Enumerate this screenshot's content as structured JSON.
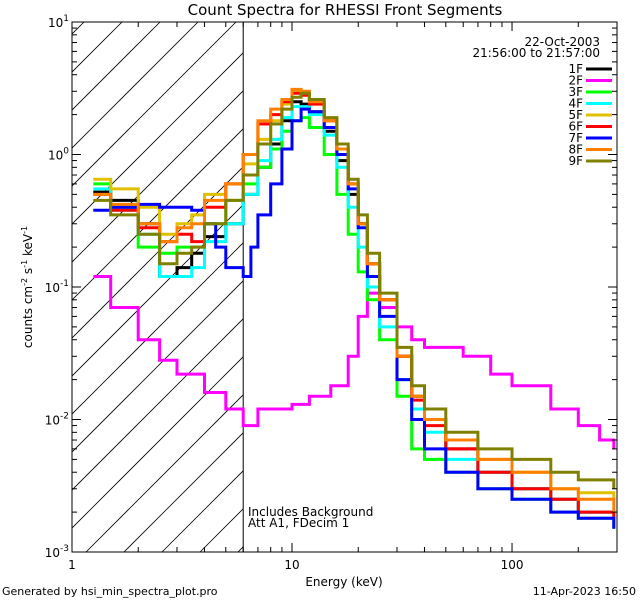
{
  "chart_data": {
    "type": "line",
    "title": "Count Spectra for RHESSI Front Segments",
    "xlabel": "Energy (keV)",
    "ylabel_base": "counts cm",
    "ylabel_exp1": "-2",
    "ylabel_mid": " s",
    "ylabel_exp2": "-1",
    "ylabel_end": " keV",
    "ylabel_exp3": "-1",
    "xscale": "log",
    "yscale": "log",
    "xlim": [
      1,
      300
    ],
    "ylim": [
      0.001,
      10
    ],
    "x_tick_labels": [
      {
        "value": 1,
        "label": "1"
      },
      {
        "value": 10,
        "label": "10"
      },
      {
        "value": 100,
        "label": "100"
      }
    ],
    "y_tick_labels": [
      {
        "value": 10,
        "base": "10",
        "exp": "1"
      },
      {
        "value": 1,
        "base": "10",
        "exp": "0"
      },
      {
        "value": 0.1,
        "base": "10",
        "exp": "-1"
      },
      {
        "value": 0.01,
        "base": "10",
        "exp": "-2"
      },
      {
        "value": 0.001,
        "base": "10",
        "exp": "-3"
      }
    ],
    "date": "22-Oct-2003",
    "time_range": "21:56:00 to 21:57:00",
    "hatched_region_max_keV": 6,
    "annotation_line1": "Includes Background",
    "annotation_line2": "Att A1, FDecim 1",
    "legend_position": "top-right",
    "series": [
      {
        "name": "1F",
        "color": "#000000",
        "points": [
          [
            1.25,
            0.52
          ],
          [
            1.5,
            0.45
          ],
          [
            2,
            0.3
          ],
          [
            2.5,
            0.12
          ],
          [
            3,
            0.14
          ],
          [
            3.5,
            0.18
          ],
          [
            4,
            0.24
          ],
          [
            5,
            0.3
          ],
          [
            6,
            0.5
          ],
          [
            7,
            0.8
          ],
          [
            8,
            1.2
          ],
          [
            9,
            1.8
          ],
          [
            10,
            2.5
          ],
          [
            11,
            2.4
          ],
          [
            12,
            2.1
          ],
          [
            14,
            1.5
          ],
          [
            16,
            0.9
          ],
          [
            18,
            0.5
          ],
          [
            20,
            0.3
          ],
          [
            22,
            0.15
          ],
          [
            25,
            0.08
          ],
          [
            30,
            0.03
          ],
          [
            35,
            0.015
          ],
          [
            40,
            0.01
          ],
          [
            50,
            0.006
          ],
          [
            70,
            0.004
          ],
          [
            100,
            0.003
          ],
          [
            150,
            0.0025
          ],
          [
            200,
            0.002
          ],
          [
            290,
            0.002
          ]
        ]
      },
      {
        "name": "2F",
        "color": "#ff00ff",
        "points": [
          [
            1.25,
            0.12
          ],
          [
            1.5,
            0.07
          ],
          [
            2,
            0.04
          ],
          [
            2.5,
            0.028
          ],
          [
            3,
            0.022
          ],
          [
            4,
            0.016
          ],
          [
            5,
            0.012
          ],
          [
            6,
            0.009
          ],
          [
            7,
            0.012
          ],
          [
            8,
            0.012
          ],
          [
            10,
            0.013
          ],
          [
            12,
            0.015
          ],
          [
            15,
            0.018
          ],
          [
            18,
            0.03
          ],
          [
            20,
            0.06
          ],
          [
            22,
            0.09
          ],
          [
            25,
            0.07
          ],
          [
            30,
            0.05
          ],
          [
            35,
            0.04
          ],
          [
            40,
            0.035
          ],
          [
            50,
            0.035
          ],
          [
            60,
            0.03
          ],
          [
            80,
            0.022
          ],
          [
            100,
            0.018
          ],
          [
            150,
            0.012
          ],
          [
            200,
            0.009
          ],
          [
            250,
            0.007
          ],
          [
            290,
            0.006
          ]
        ]
      },
      {
        "name": "3F",
        "color": "#00ff00",
        "points": [
          [
            1.25,
            0.6
          ],
          [
            1.5,
            0.4
          ],
          [
            2,
            0.2
          ],
          [
            2.5,
            0.18
          ],
          [
            3,
            0.2
          ],
          [
            4,
            0.3
          ],
          [
            5,
            0.45
          ],
          [
            6,
            0.6
          ],
          [
            7,
            0.8
          ],
          [
            8,
            1.1
          ],
          [
            9,
            1.5
          ],
          [
            10,
            1.8
          ],
          [
            11,
            1.9
          ],
          [
            12,
            1.6
          ],
          [
            14,
            1.0
          ],
          [
            16,
            0.5
          ],
          [
            18,
            0.25
          ],
          [
            20,
            0.13
          ],
          [
            22,
            0.08
          ],
          [
            25,
            0.04
          ],
          [
            30,
            0.015
          ],
          [
            35,
            0.006
          ],
          [
            40,
            0.005
          ],
          [
            50,
            0.004
          ],
          [
            70,
            0.003
          ],
          [
            100,
            0.0025
          ],
          [
            150,
            0.002
          ],
          [
            200,
            0.0018
          ],
          [
            290,
            0.0015
          ]
        ]
      },
      {
        "name": "4F",
        "color": "#00ffff",
        "points": [
          [
            1.25,
            0.55
          ],
          [
            1.5,
            0.38
          ],
          [
            2,
            0.25
          ],
          [
            2.5,
            0.12
          ],
          [
            3,
            0.12
          ],
          [
            3.5,
            0.14
          ],
          [
            4,
            0.22
          ],
          [
            5,
            0.3
          ],
          [
            6,
            0.5
          ],
          [
            7,
            0.9
          ],
          [
            8,
            1.3
          ],
          [
            9,
            1.9
          ],
          [
            10,
            2.3
          ],
          [
            11,
            2.3
          ],
          [
            12,
            2.0
          ],
          [
            14,
            1.4
          ],
          [
            16,
            0.8
          ],
          [
            18,
            0.4
          ],
          [
            20,
            0.2
          ],
          [
            22,
            0.1
          ],
          [
            25,
            0.05
          ],
          [
            30,
            0.02
          ],
          [
            35,
            0.012
          ],
          [
            40,
            0.008
          ],
          [
            50,
            0.005
          ],
          [
            70,
            0.004
          ],
          [
            100,
            0.003
          ],
          [
            150,
            0.0025
          ],
          [
            200,
            0.002
          ],
          [
            290,
            0.0018
          ]
        ]
      },
      {
        "name": "5F",
        "color": "#e0c000",
        "points": [
          [
            1.25,
            0.65
          ],
          [
            1.5,
            0.55
          ],
          [
            2,
            0.4
          ],
          [
            2.5,
            0.25
          ],
          [
            3,
            0.3
          ],
          [
            3.5,
            0.35
          ],
          [
            4,
            0.5
          ],
          [
            5,
            0.6
          ],
          [
            6,
            0.85
          ],
          [
            7,
            1.3
          ],
          [
            8,
            1.8
          ],
          [
            9,
            2.4
          ],
          [
            10,
            3.0
          ],
          [
            11,
            2.9
          ],
          [
            12,
            2.5
          ],
          [
            14,
            1.8
          ],
          [
            16,
            1.1
          ],
          [
            18,
            0.6
          ],
          [
            20,
            0.3
          ],
          [
            22,
            0.15
          ],
          [
            25,
            0.08
          ],
          [
            30,
            0.03
          ],
          [
            35,
            0.015
          ],
          [
            40,
            0.01
          ],
          [
            50,
            0.007
          ],
          [
            70,
            0.005
          ],
          [
            100,
            0.004
          ],
          [
            150,
            0.003
          ],
          [
            200,
            0.0028
          ],
          [
            290,
            0.0025
          ]
        ]
      },
      {
        "name": "6F",
        "color": "#ff0000",
        "points": [
          [
            1.25,
            0.5
          ],
          [
            1.5,
            0.38
          ],
          [
            2,
            0.28
          ],
          [
            2.5,
            0.22
          ],
          [
            3,
            0.25
          ],
          [
            3.5,
            0.22
          ],
          [
            4,
            0.4
          ],
          [
            5,
            0.6
          ],
          [
            6,
            1.0
          ],
          [
            7,
            1.7
          ],
          [
            8,
            2.0
          ],
          [
            9,
            2.5
          ],
          [
            10,
            2.9
          ],
          [
            11,
            2.8
          ],
          [
            12,
            2.4
          ],
          [
            14,
            1.8
          ],
          [
            16,
            1.1
          ],
          [
            18,
            0.6
          ],
          [
            20,
            0.3
          ],
          [
            22,
            0.15
          ],
          [
            25,
            0.08
          ],
          [
            30,
            0.03
          ],
          [
            35,
            0.014
          ],
          [
            40,
            0.009
          ],
          [
            50,
            0.006
          ],
          [
            70,
            0.004
          ],
          [
            100,
            0.003
          ],
          [
            150,
            0.0025
          ],
          [
            200,
            0.002
          ],
          [
            290,
            0.0018
          ]
        ]
      },
      {
        "name": "7F",
        "color": "#0000ff",
        "points": [
          [
            1.25,
            0.38
          ],
          [
            1.5,
            0.4
          ],
          [
            2,
            0.42
          ],
          [
            2.5,
            0.4
          ],
          [
            3,
            0.4
          ],
          [
            3.5,
            0.38
          ],
          [
            4,
            0.3
          ],
          [
            4.5,
            0.2
          ],
          [
            5,
            0.14
          ],
          [
            6,
            0.12
          ],
          [
            6.5,
            0.2
          ],
          [
            7,
            0.35
          ],
          [
            8,
            0.6
          ],
          [
            9,
            1.1
          ],
          [
            10,
            1.8
          ],
          [
            11,
            2.2
          ],
          [
            12,
            2.1
          ],
          [
            14,
            1.6
          ],
          [
            16,
            1.0
          ],
          [
            18,
            0.55
          ],
          [
            20,
            0.28
          ],
          [
            22,
            0.12
          ],
          [
            25,
            0.06
          ],
          [
            30,
            0.02
          ],
          [
            35,
            0.01
          ],
          [
            40,
            0.006
          ],
          [
            50,
            0.004
          ],
          [
            70,
            0.003
          ],
          [
            100,
            0.0025
          ],
          [
            150,
            0.002
          ],
          [
            200,
            0.0018
          ],
          [
            290,
            0.0015
          ]
        ]
      },
      {
        "name": "8F",
        "color": "#ff8000",
        "points": [
          [
            1.25,
            0.5
          ],
          [
            1.5,
            0.42
          ],
          [
            2,
            0.3
          ],
          [
            2.5,
            0.22
          ],
          [
            3,
            0.28
          ],
          [
            3.5,
            0.3
          ],
          [
            4,
            0.45
          ],
          [
            5,
            0.6
          ],
          [
            6,
            1.0
          ],
          [
            7,
            1.8
          ],
          [
            8,
            2.2
          ],
          [
            9,
            2.6
          ],
          [
            10,
            3.1
          ],
          [
            11,
            3.0
          ],
          [
            12,
            2.5
          ],
          [
            14,
            1.8
          ],
          [
            16,
            1.1
          ],
          [
            18,
            0.6
          ],
          [
            20,
            0.3
          ],
          [
            22,
            0.15
          ],
          [
            25,
            0.08
          ],
          [
            30,
            0.03
          ],
          [
            35,
            0.015
          ],
          [
            40,
            0.01
          ],
          [
            50,
            0.007
          ],
          [
            70,
            0.005
          ],
          [
            100,
            0.004
          ],
          [
            150,
            0.003
          ],
          [
            200,
            0.0025
          ],
          [
            290,
            0.002
          ]
        ]
      },
      {
        "name": "9F",
        "color": "#808000",
        "points": [
          [
            1.25,
            0.45
          ],
          [
            1.5,
            0.35
          ],
          [
            2,
            0.25
          ],
          [
            2.5,
            0.15
          ],
          [
            3,
            0.18
          ],
          [
            3.5,
            0.2
          ],
          [
            4,
            0.3
          ],
          [
            5,
            0.45
          ],
          [
            6,
            0.7
          ],
          [
            7,
            1.2
          ],
          [
            8,
            1.7
          ],
          [
            9,
            2.2
          ],
          [
            10,
            2.7
          ],
          [
            11,
            2.9
          ],
          [
            12,
            2.6
          ],
          [
            14,
            1.9
          ],
          [
            16,
            1.2
          ],
          [
            18,
            0.65
          ],
          [
            20,
            0.35
          ],
          [
            22,
            0.18
          ],
          [
            25,
            0.09
          ],
          [
            30,
            0.035
          ],
          [
            35,
            0.018
          ],
          [
            40,
            0.012
          ],
          [
            50,
            0.008
          ],
          [
            70,
            0.006
          ],
          [
            100,
            0.005
          ],
          [
            150,
            0.004
          ],
          [
            200,
            0.0035
          ],
          [
            290,
            0.003
          ]
        ]
      }
    ]
  },
  "footer": {
    "generated_by": "Generated by hsi_min_spectra_plot.pro",
    "timestamp": "11-Apr-2023 16:50"
  }
}
